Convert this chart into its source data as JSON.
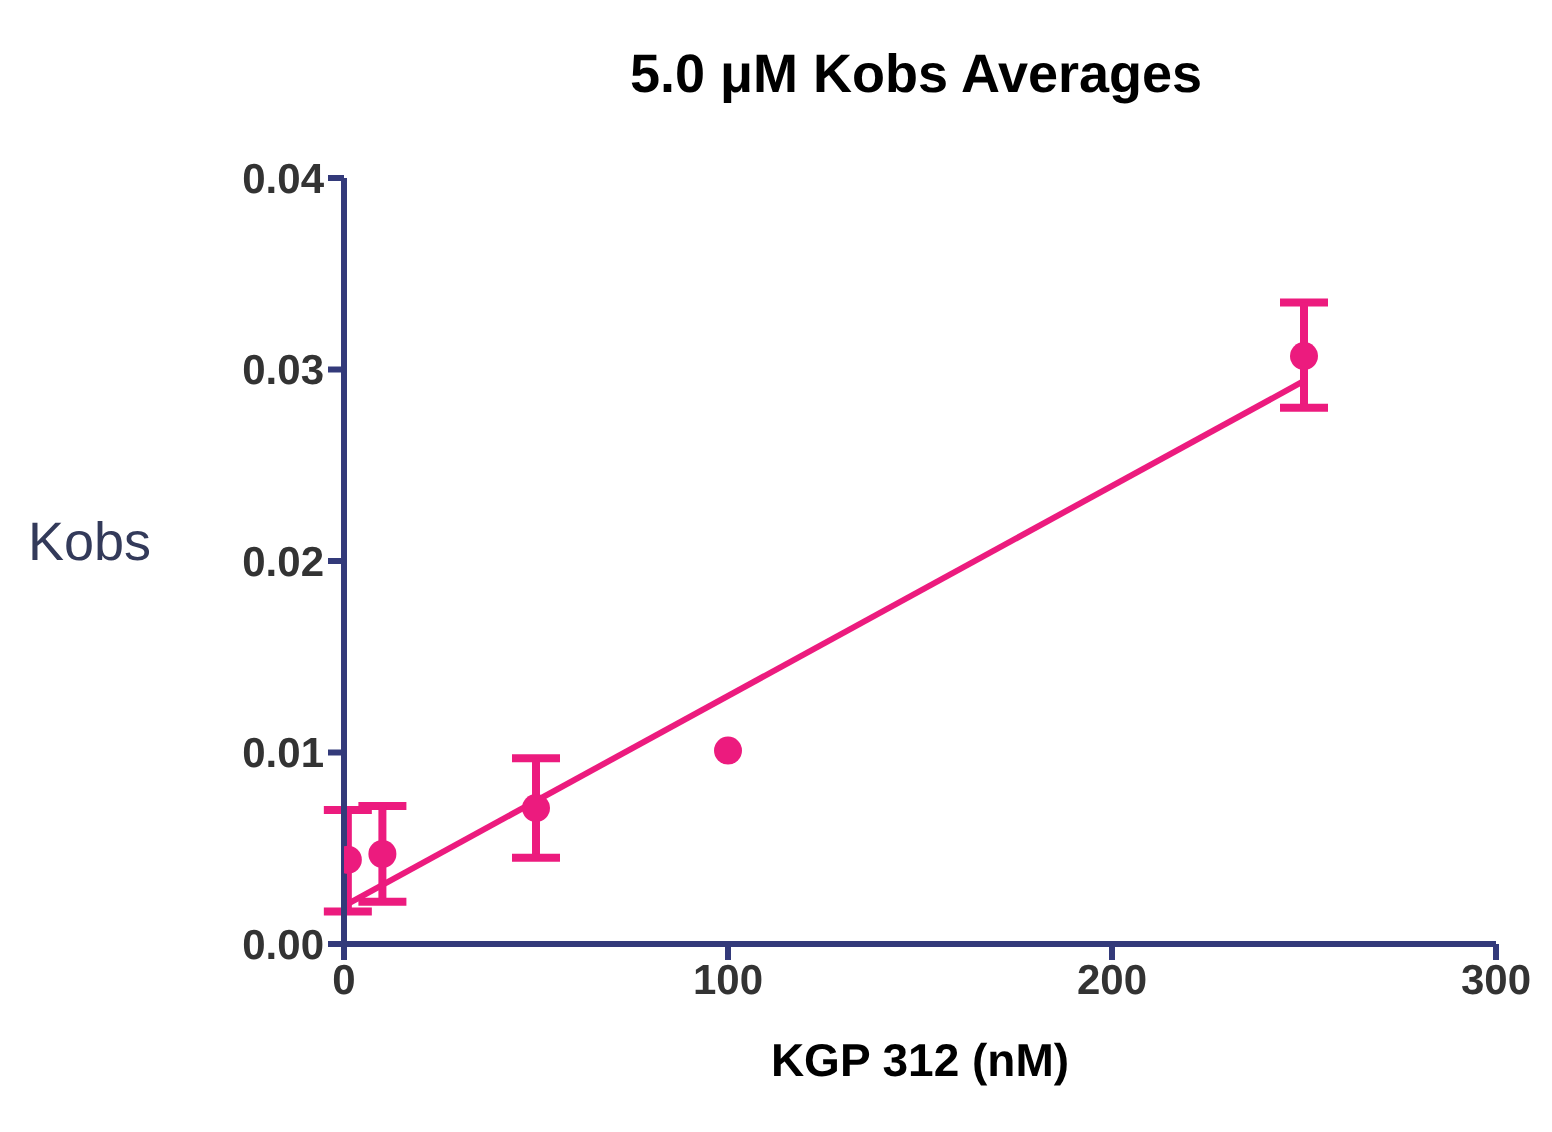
{
  "chart_data": {
    "type": "scatter",
    "title": "5.0 μM Kobs Averages",
    "xlabel": "KGP 312 (nM)",
    "ylabel": "Kobs",
    "x": [
      1,
      10,
      50,
      100,
      250
    ],
    "series": [
      {
        "marker": "circle",
        "color": "#ec1b7e",
        "values": [
          0.0044,
          0.0047,
          0.0071,
          0.0101,
          0.0307
        ],
        "errors": [
          [
            0.0017,
            0.007
          ],
          [
            0.0022,
            0.0072
          ],
          [
            0.0045,
            0.0097
          ],
          null,
          [
            0.028,
            0.0335
          ]
        ]
      },
      {
        "type": "line",
        "marker": "none",
        "color": "#ec1b7e",
        "x": [
          1,
          250
        ],
        "values": [
          0.0021,
          0.0294
        ]
      }
    ],
    "xlim": [
      0,
      300
    ],
    "xticks": [
      0,
      100,
      200,
      300
    ],
    "ylim": [
      0,
      0.04
    ],
    "yticks": [
      {
        "value": 0,
        "label": "0.00"
      },
      {
        "value": 0.01,
        "label": "0.01"
      },
      {
        "value": 0.02,
        "label": "0.02"
      },
      {
        "value": 0.03,
        "label": "0.03"
      },
      {
        "value": 0.04,
        "label": "0.04"
      }
    ],
    "line_style": "solid",
    "grid": false,
    "legend": false
  }
}
